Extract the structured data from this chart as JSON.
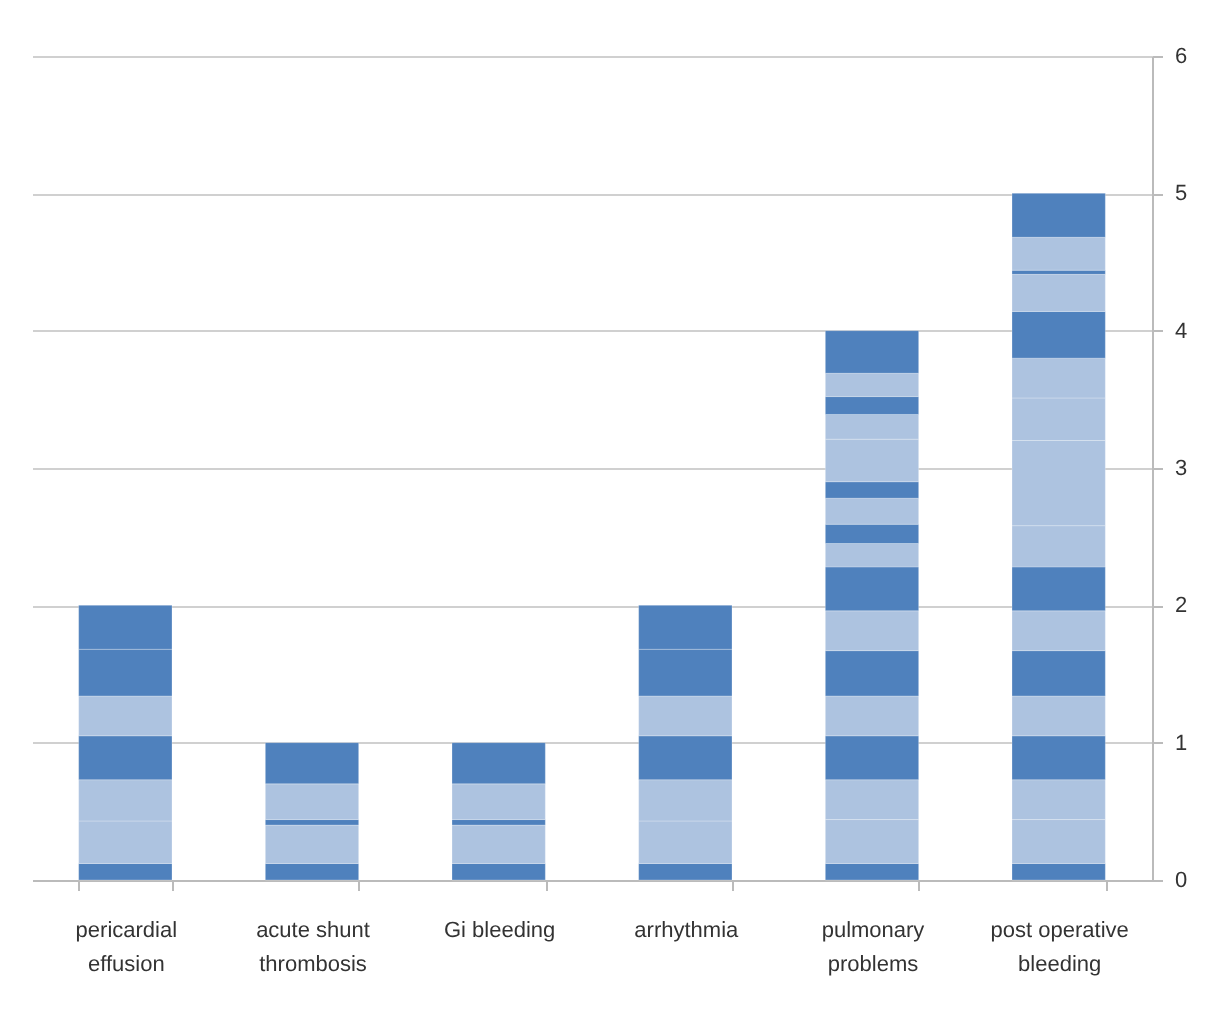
{
  "chart_data": {
    "type": "bar",
    "stacked": true,
    "categories": [
      "pericardial effusion",
      "acute shunt thrombosis",
      "Gi bleeding",
      "arrhythmia",
      "pulmonary problems",
      "post operative bleeding"
    ],
    "series": [
      {
        "colors": [
          "#4f81bd",
          "#4f81bd",
          "#4f81bd",
          "#4f81bd",
          "#4f81bd",
          "#4f81bd"
        ],
        "values": [
          0.12,
          0.12,
          0.12,
          0.12,
          0.12,
          0.12
        ]
      },
      {
        "colors": [
          "#adc3e0",
          "#adc3e0",
          "#adc3e0",
          "#adc3e0",
          "#adc3e0",
          "#adc3e0"
        ],
        "values": [
          0.31,
          0.28,
          0.28,
          0.31,
          0.32,
          0.32
        ]
      },
      {
        "colors": [
          "#adc3e0",
          "#4f81bd",
          "#4f81bd",
          "#adc3e0",
          "#adc3e0",
          "#adc3e0"
        ],
        "values": [
          0.3,
          0.04,
          0.04,
          0.3,
          0.29,
          0.29
        ]
      },
      {
        "colors": [
          "#4f81bd",
          "#adc3e0",
          "#adc3e0",
          "#4f81bd",
          "#4f81bd",
          "#4f81bd"
        ],
        "values": [
          0.32,
          0.26,
          0.26,
          0.32,
          0.32,
          0.32
        ]
      },
      {
        "colors": [
          "#adc3e0",
          "#4f81bd",
          "#4f81bd",
          "#adc3e0",
          "#adc3e0",
          "#adc3e0"
        ],
        "values": [
          0.29,
          0.3,
          0.3,
          0.29,
          0.29,
          0.29
        ]
      },
      {
        "colors": [
          "#4f81bd",
          null,
          null,
          "#4f81bd",
          "#4f81bd",
          "#4f81bd"
        ],
        "values": [
          0.34,
          null,
          null,
          0.34,
          0.33,
          0.33
        ]
      },
      {
        "colors": [
          "#4f81bd",
          null,
          null,
          "#4f81bd",
          "#adc3e0",
          "#adc3e0"
        ],
        "values": [
          0.32,
          null,
          null,
          0.32,
          0.29,
          0.29
        ]
      },
      {
        "colors": [
          null,
          null,
          null,
          null,
          "#4f81bd",
          "#4f81bd"
        ],
        "values": [
          null,
          null,
          null,
          null,
          0.32,
          0.32
        ]
      },
      {
        "colors": [
          null,
          null,
          null,
          null,
          "#adc3e0",
          "#adc3e0"
        ],
        "values": [
          null,
          null,
          null,
          null,
          0.17,
          0.3
        ]
      },
      {
        "colors": [
          null,
          null,
          null,
          null,
          "#4f81bd",
          "#adc3e0"
        ],
        "values": [
          null,
          null,
          null,
          null,
          0.14,
          0.62
        ]
      },
      {
        "colors": [
          null,
          null,
          null,
          null,
          "#adc3e0",
          "#adc3e0"
        ],
        "values": [
          null,
          null,
          null,
          null,
          0.19,
          0.31
        ]
      },
      {
        "colors": [
          null,
          null,
          null,
          null,
          "#4f81bd",
          "#adc3e0"
        ],
        "values": [
          null,
          null,
          null,
          null,
          0.12,
          0.29
        ]
      },
      {
        "colors": [
          null,
          null,
          null,
          null,
          "#adc3e0",
          "#4f81bd"
        ],
        "values": [
          null,
          null,
          null,
          null,
          0.31,
          0.34
        ]
      },
      {
        "colors": [
          null,
          null,
          null,
          null,
          "#adc3e0",
          "#adc3e0"
        ],
        "values": [
          null,
          null,
          null,
          null,
          0.18,
          0.27
        ]
      },
      {
        "colors": [
          null,
          null,
          null,
          null,
          "#4f81bd",
          "#4f81bd"
        ],
        "values": [
          null,
          null,
          null,
          null,
          0.13,
          0.03
        ]
      },
      {
        "colors": [
          null,
          null,
          null,
          null,
          "#adc3e0",
          "#adc3e0"
        ],
        "values": [
          null,
          null,
          null,
          null,
          0.17,
          0.24
        ]
      },
      {
        "colors": [
          null,
          null,
          null,
          null,
          "#4f81bd",
          "#4f81bd"
        ],
        "values": [
          null,
          null,
          null,
          null,
          0.31,
          0.32
        ]
      }
    ],
    "ylim": [
      0,
      6
    ],
    "yticks": [
      0,
      1,
      2,
      3,
      4,
      5,
      6
    ],
    "grid": "y"
  }
}
